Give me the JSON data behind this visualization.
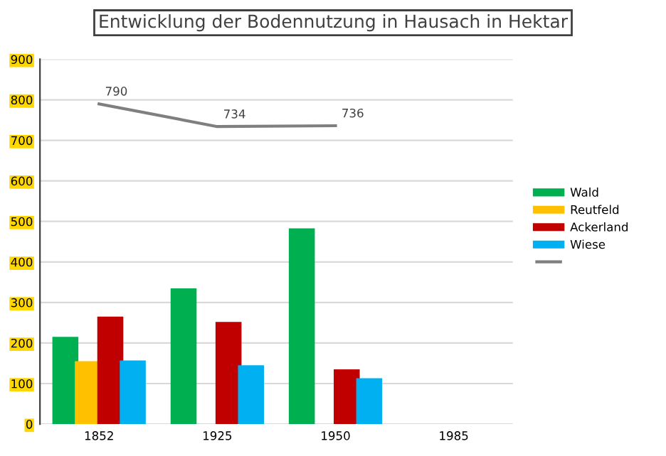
{
  "chart_data": {
    "type": "bar",
    "title": "Entwicklung der Bodennutzung in Hausach in Hektar",
    "categories": [
      "1852",
      "1925",
      "1950",
      "1985"
    ],
    "series": [
      {
        "name": "Wald",
        "color": "#00b050",
        "values": [
          215,
          335,
          483,
          null
        ]
      },
      {
        "name": "Reutfeld",
        "color": "#ffc000",
        "values": [
          155,
          null,
          null,
          null
        ]
      },
      {
        "name": "Ackerland",
        "color": "#c00000",
        "values": [
          265,
          252,
          135,
          null
        ]
      },
      {
        "name": "Wiese",
        "color": "#00b0f0",
        "values": [
          157,
          145,
          113,
          null
        ]
      },
      {
        "type": "line",
        "color": "#7f7f7f",
        "values": [
          790,
          734,
          736,
          null
        ],
        "value_labels": [
          "790",
          "734",
          "736",
          null
        ]
      }
    ],
    "ylim": [
      0,
      900
    ],
    "yticks": [
      0,
      100,
      200,
      300,
      400,
      500,
      600,
      700,
      800,
      900
    ],
    "grid": "y",
    "legend": "right"
  }
}
